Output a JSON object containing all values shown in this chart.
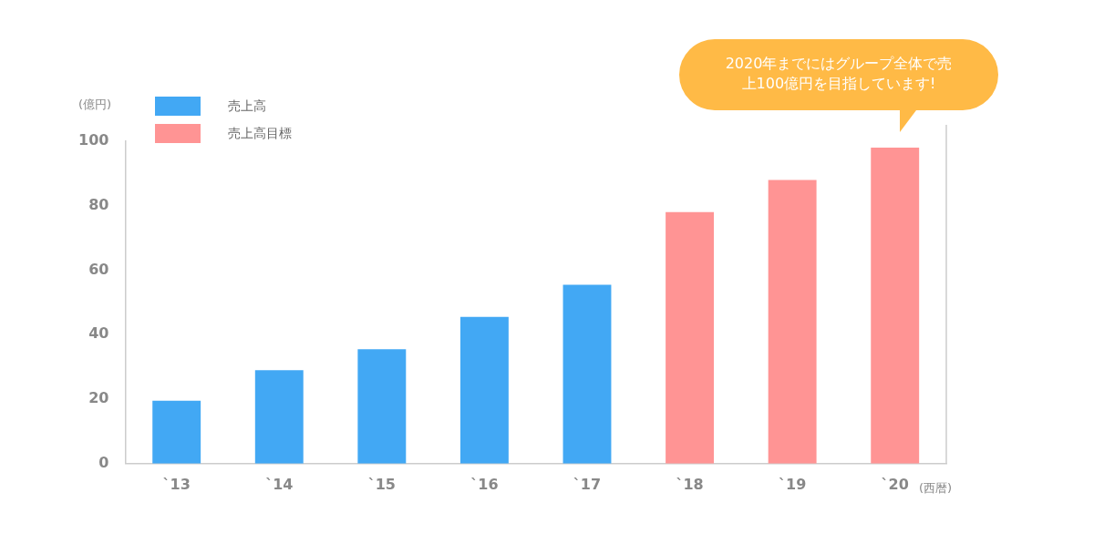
{
  "chart_data": {
    "type": "bar",
    "categories": [
      "`13",
      "`14",
      "`15",
      "`16",
      "`17",
      "`18",
      "`19",
      "`20"
    ],
    "series": [
      {
        "name": "売上高",
        "color": "#42a8f4",
        "values": [
          19.5,
          29,
          35.5,
          45.5,
          55.5,
          null,
          null,
          null
        ]
      },
      {
        "name": "売上高目標",
        "color": "#ff9494",
        "values": [
          null,
          null,
          null,
          null,
          null,
          78,
          88,
          98
        ]
      }
    ],
    "ylabel": "(億円)",
    "xlabel": "(西暦)",
    "ylim": [
      0,
      100
    ],
    "yticks": [
      0,
      20,
      40,
      60,
      80,
      100
    ],
    "grid": false,
    "legend": "top left",
    "annotations": [
      "2020年までにはグループ全体で売上100億円を目指しています!"
    ]
  }
}
